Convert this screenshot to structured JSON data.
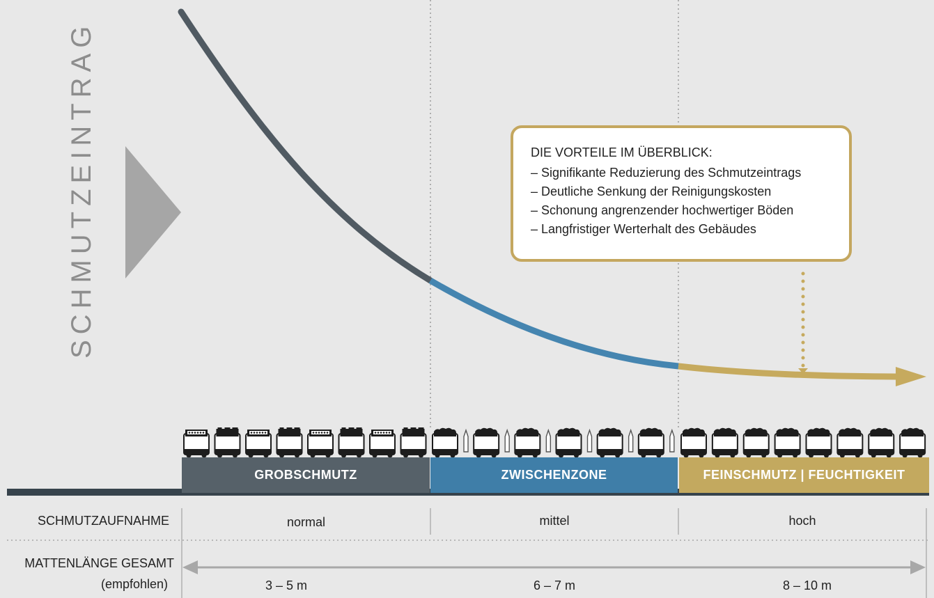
{
  "y_axis_label": "SCHMUTZEINTRAG",
  "callout": {
    "title": "DIE VORTEILE IM ÜBERBLICK:",
    "items": [
      "– Signifikante Reduzierung des Schmutzeintrags",
      "– Deutliche Senkung der Reinigungskosten",
      "– Schonung angrenzender hochwertiger Böden",
      "– Langfristiger Werterhalt des Gebäudes"
    ]
  },
  "zones": [
    {
      "label": "GROBSCHMUTZ",
      "color": "#566169",
      "curve_color": "#505a62",
      "absorption": "normal",
      "length": "3 – 5 m"
    },
    {
      "label": "ZWISCHENZONE",
      "color": "#3f7ea8",
      "curve_color": "#4585b0",
      "absorption": "mittel",
      "length": "6 – 7 m"
    },
    {
      "label": "FEINSCHMUTZ | FEUCHTIGKEIT",
      "color": "#c3a95f",
      "curve_color": "#c6aa5e",
      "absorption": "hoch",
      "length": "8 – 10 m"
    }
  ],
  "rows": {
    "absorption_label": "SCHMUTZAUFNAHME",
    "length_label_line1": "MATTENLÄNGE GESAMT",
    "length_label_line2": "(empfohlen)"
  },
  "mat_icons": {
    "zone1_count": 8,
    "zone2_count": 6,
    "zone3_count": 8
  },
  "colors": {
    "background": "#e8e8e8",
    "baseline": "#37434c",
    "callout_border": "#c4a75f",
    "arrow_gray": "#a8a8a8",
    "triangle_gray": "#a6a6a6",
    "icon": "#1d1d1d"
  }
}
